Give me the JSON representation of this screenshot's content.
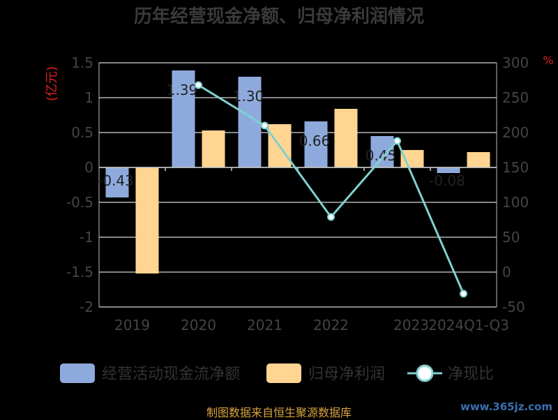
{
  "footer": "制图数据来自恒生聚源数据库",
  "watermark": "www.365jz.com",
  "chart_data": {
    "type": "bar",
    "title": "历年经营现金净额、归母净利润情况",
    "ylabel_left": "(亿元)",
    "ylabel_right": "%",
    "categories": [
      "2019",
      "2020",
      "2021",
      "2022",
      "2023",
      "2024Q1-Q3"
    ],
    "ylim_left": [
      -2,
      1.5
    ],
    "yticks_left": [
      "1.5",
      "1",
      "0.5",
      "0",
      "-0.5",
      "-1",
      "-1.5",
      "-2"
    ],
    "ylim_right": [
      -50,
      300
    ],
    "yticks_right": [
      "300",
      "250",
      "200",
      "150",
      "100",
      "50",
      "0",
      "-50"
    ],
    "grid": true,
    "legend_position": "bottom",
    "series": [
      {
        "name": "经营活动现金流净额",
        "kind": "bar",
        "color": "#8eaadc",
        "values": [
          -0.43,
          1.39,
          1.3,
          0.66,
          0.45,
          -0.08
        ],
        "labels": [
          "-0.43",
          "1.39",
          "1.30",
          "0.66",
          "0.45",
          "-0.08"
        ]
      },
      {
        "name": "归母净利润",
        "kind": "bar",
        "color": "#ffd591",
        "values": [
          -1.52,
          0.53,
          0.62,
          0.84,
          0.25,
          0.22
        ]
      },
      {
        "name": "净现比",
        "kind": "line",
        "axis": "right",
        "color": "#7fd1d0",
        "values": [
          null,
          268,
          210,
          79,
          188,
          -31
        ]
      }
    ]
  }
}
